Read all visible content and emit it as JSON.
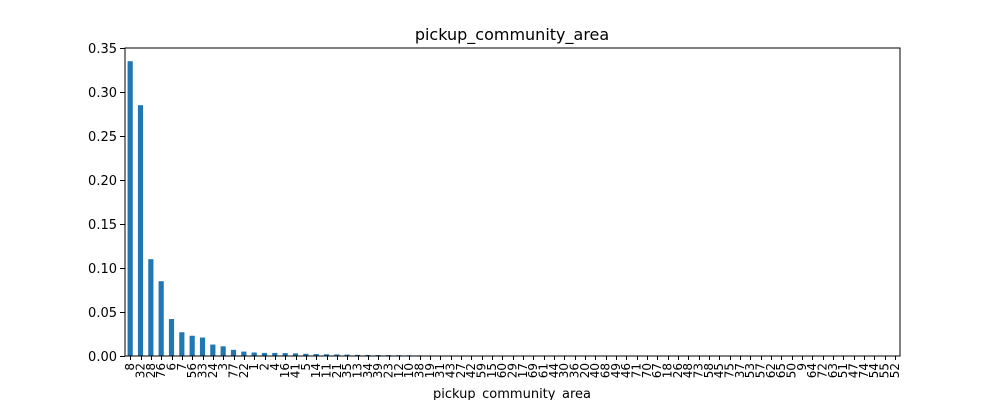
{
  "chart_data": {
    "type": "bar",
    "title": "pickup_community_area",
    "xlabel": "pickup_community_area",
    "ylabel": "",
    "ylim": [
      0,
      0.35
    ],
    "yticks": [
      "0.00",
      "0.05",
      "0.10",
      "0.15",
      "0.20",
      "0.25",
      "0.30",
      "0.35"
    ],
    "bar_color": "#1f77b4",
    "categories": [
      "8",
      "32",
      "28",
      "76",
      "6",
      "7",
      "56",
      "33",
      "24",
      "3",
      "77",
      "22",
      "1",
      "2",
      "4",
      "16",
      "41",
      "5",
      "14",
      "11",
      "21",
      "35",
      "13",
      "34",
      "39",
      "23",
      "12",
      "10",
      "38",
      "19",
      "31",
      "43",
      "27",
      "42",
      "59",
      "15",
      "60",
      "29",
      "17",
      "69",
      "61",
      "44",
      "30",
      "36",
      "20",
      "40",
      "68",
      "49",
      "46",
      "71",
      "70",
      "67",
      "18",
      "26",
      "48",
      "73",
      "58",
      "45",
      "75",
      "37",
      "53",
      "57",
      "62",
      "65",
      "50",
      "9",
      "64",
      "72",
      "63",
      "51",
      "47",
      "74",
      "54",
      "55",
      "52"
    ],
    "values": [
      0.335,
      0.285,
      0.11,
      0.085,
      0.042,
      0.027,
      0.023,
      0.021,
      0.013,
      0.011,
      0.007,
      0.005,
      0.004,
      0.0035,
      0.0035,
      0.0033,
      0.003,
      0.0025,
      0.0022,
      0.002,
      0.0018,
      0.0016,
      0.0013,
      0.0012,
      0.0011,
      0.001,
      0.0009,
      0.0008,
      0.0007,
      0.0006,
      0.0005,
      0.0004,
      0.0004,
      0.0003,
      0.0003,
      0.0003,
      0.0002,
      0.0002,
      0.0002,
      0.0002,
      0.0002,
      0.0001,
      0.0001,
      0.0001,
      0.0001,
      0.0001,
      0.0001,
      0.0001,
      0.0001,
      0.0001,
      0.0001,
      0.0001,
      0.0001,
      0.0001,
      0.0001,
      0.0001,
      0.0001,
      0.0001,
      5e-05,
      5e-05,
      5e-05,
      5e-05,
      5e-05,
      5e-05,
      5e-05,
      5e-05,
      5e-05,
      5e-05,
      5e-05,
      5e-05,
      5e-05,
      5e-05,
      5e-05,
      5e-05,
      5e-05
    ]
  }
}
